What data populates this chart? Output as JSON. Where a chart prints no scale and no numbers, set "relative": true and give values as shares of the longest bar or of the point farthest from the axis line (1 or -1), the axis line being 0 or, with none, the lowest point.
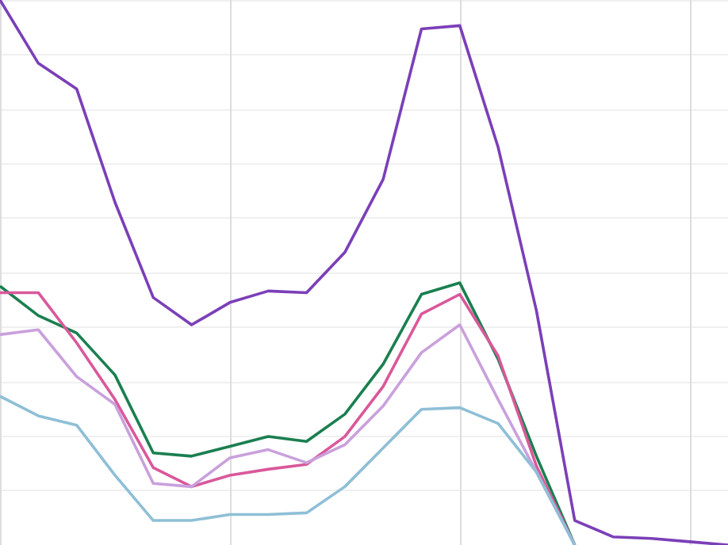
{
  "chart_data": {
    "type": "line",
    "relative": true,
    "grid": true,
    "marker": "none",
    "line_style": "solid",
    "categories": [
      null,
      null,
      null,
      null,
      null,
      null,
      null,
      null,
      null,
      null,
      null,
      null,
      null,
      null,
      null,
      null,
      null,
      null,
      null,
      null
    ],
    "series": [
      {
        "color": "#7b3fb8",
        "values": [
          1.0,
          0.884,
          0.837,
          0.629,
          0.454,
          0.404,
          0.445,
          0.466,
          0.463,
          0.537,
          0.671,
          0.947,
          0.953,
          0.73,
          0.43,
          0.045,
          0.015,
          0.012,
          0.006,
          0
        ]
      },
      {
        "color": "#1a7f4f",
        "values": [
          0.475,
          0.421,
          0.389,
          0.312,
          0.169,
          0.163,
          0.181,
          0.199,
          0.19,
          0.24,
          0.332,
          0.46,
          0.481,
          0.341,
          0.163,
          0,
          null,
          null,
          null,
          null
        ]
      },
      {
        "color": "#d9589a",
        "values": [
          0.463,
          0.463,
          0.371,
          0.267,
          0.142,
          0.107,
          0.128,
          0.139,
          0.148,
          0.199,
          0.291,
          0.424,
          0.46,
          0.347,
          0.145,
          0,
          null,
          null,
          null,
          null
        ]
      },
      {
        "color": "#c9a0dc",
        "values": [
          0.386,
          0.395,
          0.309,
          0.258,
          0.113,
          0.107,
          0.16,
          0.175,
          0.151,
          0.184,
          0.255,
          0.353,
          0.404,
          0.267,
          0.134,
          0,
          null,
          null,
          null,
          null
        ]
      },
      {
        "color": "#8ebfd6",
        "values": [
          0.273,
          0.237,
          0.22,
          0.128,
          0.045,
          0.045,
          0.056,
          0.056,
          0.059,
          0.107,
          0.178,
          0.249,
          0.252,
          0.223,
          0.134,
          0,
          null,
          null,
          null,
          null
        ]
      }
    ]
  }
}
